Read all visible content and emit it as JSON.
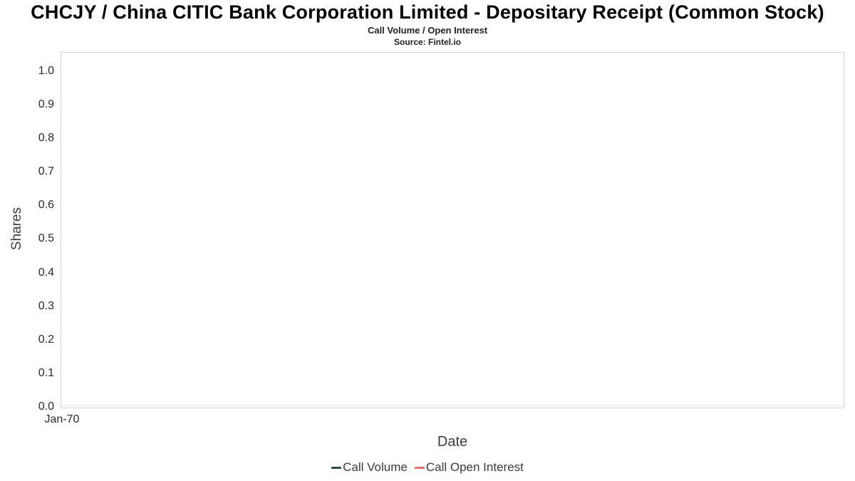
{
  "header": {
    "title": "CHCJY / China CITIC Bank Corporation Limited - Depositary Receipt (Common Stock)",
    "subtitle": "Call Volume / Open Interest",
    "source": "Source: Fintel.io"
  },
  "chart_data": {
    "type": "line",
    "title": "CHCJY / China CITIC Bank Corporation Limited - Depositary Receipt (Common Stock)",
    "subtitle": "Call Volume / Open Interest",
    "source": "Source: Fintel.io",
    "xlabel": "Date",
    "ylabel": "Shares",
    "ylim": [
      0.0,
      1.0
    ],
    "ytick_step": 0.1,
    "yticks": [
      "1.0",
      "0.9",
      "0.8",
      "0.7",
      "0.6",
      "0.5",
      "0.4",
      "0.3",
      "0.2",
      "0.1",
      "0.0"
    ],
    "xticks": [
      "Jan-70"
    ],
    "grid": false,
    "legend_position": "bottom",
    "series": [
      {
        "name": "Call Volume",
        "color": "#2d4a3e",
        "x": [],
        "values": []
      },
      {
        "name": "Call Open Interest",
        "color": "#ef6c6c",
        "x": [],
        "values": []
      }
    ]
  }
}
